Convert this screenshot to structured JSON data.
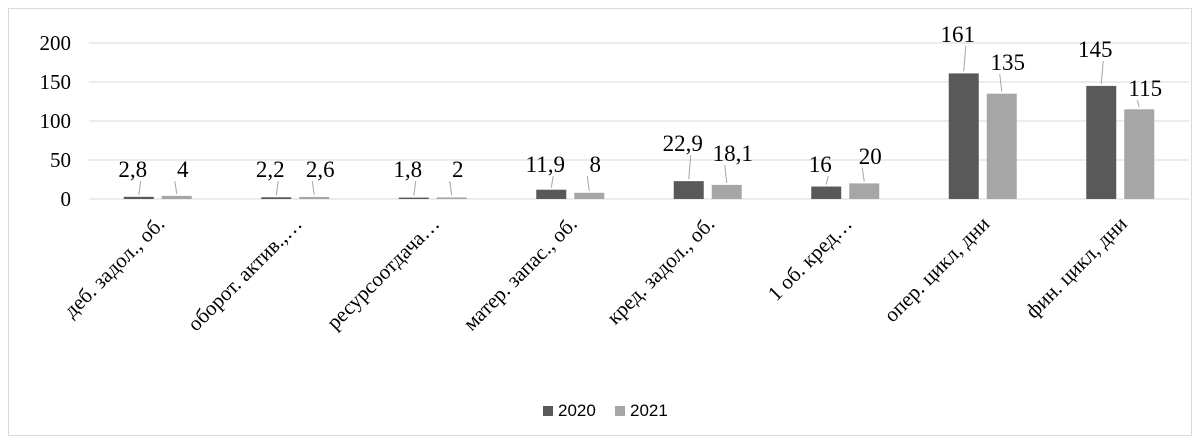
{
  "chart_data": {
    "type": "bar",
    "categories": [
      "деб. задол., об.",
      "оборот. актив.,…",
      "ресурсоотдача…",
      "матер. запас., об.",
      "кред. задол., об.",
      "1 об. кред…",
      "опер. цикл, дни",
      "фин. цикл, дни"
    ],
    "series": [
      {
        "name": "2020",
        "color": "#595959",
        "values": [
          2.8,
          2.2,
          1.8,
          11.9,
          22.9,
          16,
          161,
          145
        ],
        "labels": [
          "2,8",
          "2,2",
          "1,8",
          "11,9",
          "22,9",
          "16",
          "161",
          "145"
        ]
      },
      {
        "name": "2021",
        "color": "#a6a6a6",
        "values": [
          4,
          2.6,
          2,
          8,
          18.1,
          20,
          135,
          115
        ],
        "labels": [
          "4",
          "2,6",
          "2",
          "8",
          "18,1",
          "20",
          "135",
          "115"
        ]
      }
    ],
    "yticks": [
      "0",
      "50",
      "100",
      "150",
      "200"
    ],
    "ylim": [
      0,
      200
    ],
    "grid": true,
    "legend": "bottom"
  }
}
